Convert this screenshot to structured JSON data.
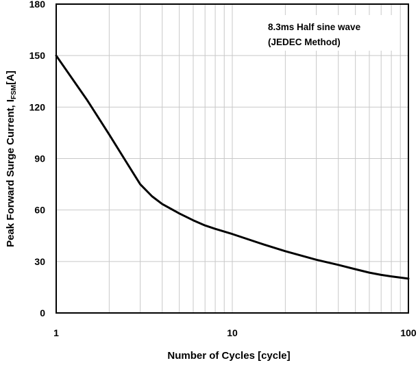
{
  "chart_data": {
    "type": "line",
    "annotations": [
      "8.3ms  Half sine wave",
      "(JEDEC  Method)"
    ],
    "xlabel": "Number of Cycles [cycle]",
    "ylabel": {
      "prefix": "Peak Forward Surge Current, I",
      "sub": "FSM",
      "suffix": "[A]"
    },
    "x_scale": "log",
    "xlim": [
      1,
      100
    ],
    "ylim": [
      0,
      180
    ],
    "x_tick_labels": [
      "1",
      "10",
      "100"
    ],
    "y_ticks": [
      0,
      30,
      60,
      90,
      120,
      150,
      180
    ],
    "y_tick_labels": [
      "0",
      "30",
      "60",
      "90",
      "120",
      "150",
      "180"
    ],
    "grid": true,
    "series": [
      {
        "color": "#000000",
        "x": [
          1,
          1.5,
          2,
          2.5,
          3,
          3.5,
          4,
          5,
          6,
          7,
          8,
          10,
          15,
          20,
          30,
          40,
          50,
          60,
          70,
          80,
          100
        ],
        "y": [
          150,
          124,
          104,
          88,
          75,
          68,
          63.5,
          58,
          54,
          51,
          49,
          46,
          40,
          36,
          31,
          28,
          25.5,
          23.5,
          22.2,
          21.3,
          20
        ]
      }
    ]
  }
}
